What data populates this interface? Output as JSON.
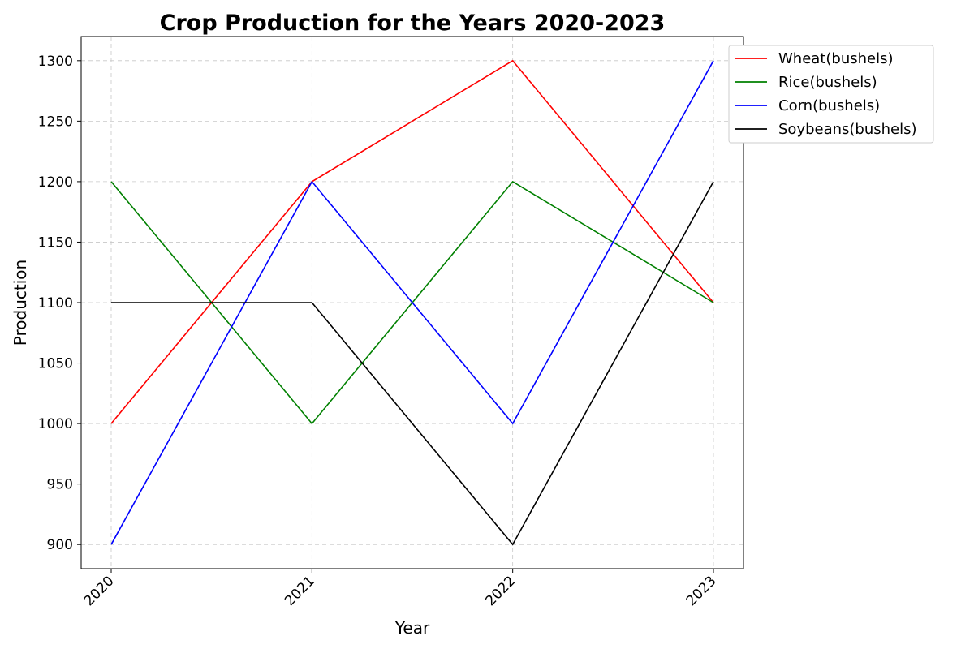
{
  "chart_data": {
    "type": "line",
    "title": "Crop Production for the Years 2020-2023",
    "xlabel": "Year",
    "ylabel": "Production",
    "x": [
      "2020",
      "2021",
      "2022",
      "2023"
    ],
    "ylim": [
      880,
      1320
    ],
    "yticks": [
      900,
      950,
      1000,
      1050,
      1100,
      1150,
      1200,
      1250,
      1300
    ],
    "grid": true,
    "legend_position": "top-right, outside plot",
    "series": [
      {
        "name": "Wheat(bushels)",
        "color": "#ff0000",
        "values": [
          1000,
          1200,
          1300,
          1100
        ]
      },
      {
        "name": "Rice(bushels)",
        "color": "#008000",
        "values": [
          1200,
          1000,
          1200,
          1100
        ]
      },
      {
        "name": "Corn(bushels)",
        "color": "#0000ff",
        "values": [
          900,
          1200,
          1000,
          1300
        ]
      },
      {
        "name": "Soybeans(bushels)",
        "color": "#000000",
        "values": [
          1100,
          1100,
          900,
          1200
        ]
      }
    ]
  }
}
